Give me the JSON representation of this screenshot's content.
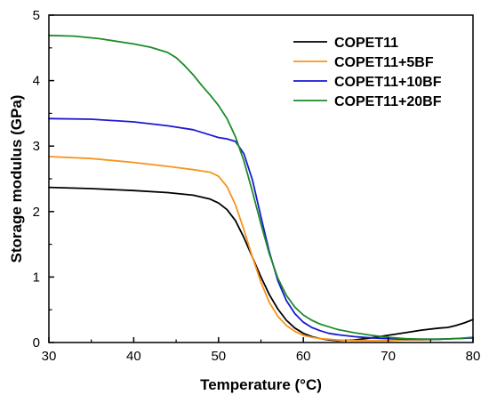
{
  "chart_data": {
    "type": "line",
    "title": "",
    "xlabel": "Temperature (°C)",
    "ylabel": "Storage modulus (GPa)",
    "xlim": [
      30,
      80
    ],
    "ylim": [
      0,
      5
    ],
    "xticks": [
      "30",
      "40",
      "50",
      "60",
      "70",
      "80"
    ],
    "yticks": [
      "0",
      "1",
      "2",
      "3",
      "4",
      "5"
    ],
    "grid": false,
    "legend_position": "top-right",
    "series": [
      {
        "name": "COPET11",
        "color": "#000000",
        "x": [
          30,
          35,
          40,
          44,
          47,
          49,
          50,
          51,
          52,
          53,
          54,
          55,
          56,
          57,
          58,
          59,
          60,
          61,
          62,
          63,
          64,
          66,
          68,
          70,
          72,
          74,
          76,
          77,
          78,
          79,
          80
        ],
        "y": [
          2.37,
          2.35,
          2.32,
          2.29,
          2.25,
          2.19,
          2.13,
          2.03,
          1.86,
          1.6,
          1.3,
          1.0,
          0.73,
          0.51,
          0.34,
          0.22,
          0.14,
          0.09,
          0.06,
          0.04,
          0.03,
          0.04,
          0.07,
          0.11,
          0.15,
          0.19,
          0.22,
          0.23,
          0.26,
          0.3,
          0.35
        ]
      },
      {
        "name": "COPET11+5BF",
        "color": "#f7941d",
        "x": [
          30,
          35,
          40,
          44,
          47,
          49,
          50,
          51,
          52,
          53,
          54,
          55,
          56,
          57,
          58,
          59,
          60,
          61,
          62,
          63,
          64,
          66,
          68,
          70,
          72,
          74,
          76,
          78,
          80
        ],
        "y": [
          2.84,
          2.81,
          2.75,
          2.69,
          2.64,
          2.6,
          2.54,
          2.38,
          2.1,
          1.72,
          1.3,
          0.92,
          0.61,
          0.4,
          0.26,
          0.17,
          0.11,
          0.08,
          0.06,
          0.05,
          0.04,
          0.03,
          0.03,
          0.03,
          0.04,
          0.04,
          0.05,
          0.06,
          0.07
        ]
      },
      {
        "name": "COPET11+10BF",
        "color": "#1a1ad0",
        "x": [
          30,
          35,
          40,
          44,
          47,
          49,
          50,
          51,
          52,
          53,
          54,
          55,
          56,
          57,
          58,
          59,
          60,
          61,
          62,
          63,
          64,
          66,
          68,
          70,
          72,
          74,
          76,
          78,
          80
        ],
        "y": [
          3.42,
          3.41,
          3.37,
          3.31,
          3.25,
          3.17,
          3.13,
          3.11,
          3.07,
          2.88,
          2.48,
          1.92,
          1.38,
          0.94,
          0.64,
          0.44,
          0.31,
          0.23,
          0.18,
          0.14,
          0.12,
          0.09,
          0.07,
          0.06,
          0.05,
          0.05,
          0.05,
          0.06,
          0.07
        ]
      },
      {
        "name": "COPET11+20BF",
        "color": "#1c8c2a",
        "x": [
          30,
          33,
          36,
          40,
          42,
          44,
          45,
          46,
          47,
          48,
          49,
          50,
          51,
          52,
          53,
          54,
          55,
          56,
          57,
          58,
          59,
          60,
          61,
          62,
          63,
          64,
          66,
          68,
          70,
          72,
          74,
          76,
          78,
          80
        ],
        "y": [
          4.69,
          4.68,
          4.64,
          4.56,
          4.51,
          4.43,
          4.35,
          4.23,
          4.09,
          3.93,
          3.78,
          3.62,
          3.42,
          3.14,
          2.77,
          2.3,
          1.81,
          1.35,
          0.98,
          0.72,
          0.54,
          0.42,
          0.34,
          0.28,
          0.24,
          0.2,
          0.15,
          0.11,
          0.08,
          0.06,
          0.05,
          0.05,
          0.06,
          0.08
        ]
      }
    ]
  }
}
